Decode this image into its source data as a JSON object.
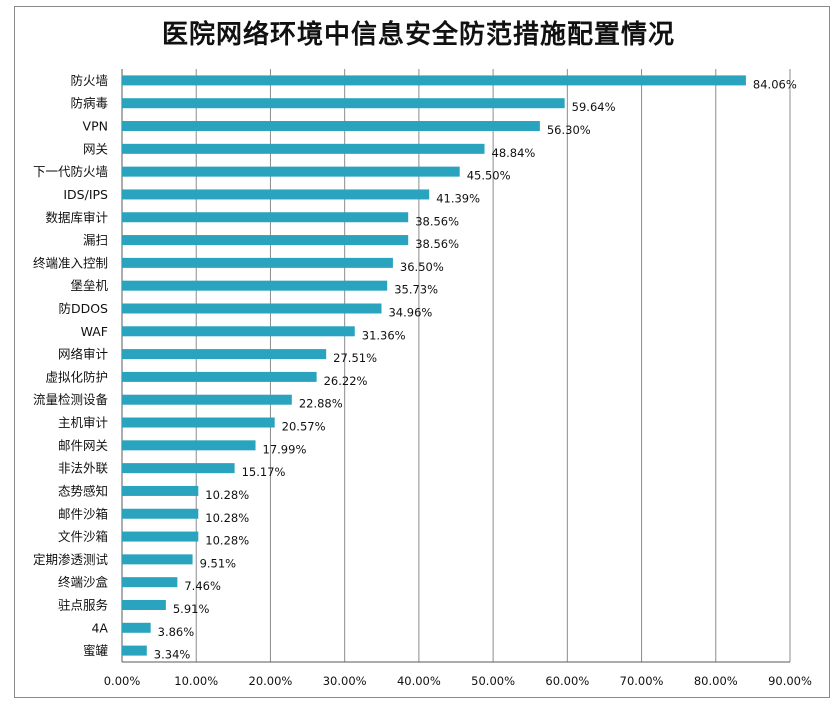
{
  "chart_data": {
    "type": "bar",
    "orientation": "horizontal",
    "title": "医院网络环境中信息安全防范措施配置情况",
    "categories": [
      "防火墙",
      "防病毒",
      "VPN",
      "网关",
      "下一代防火墙",
      "IDS/IPS",
      "数据库审计",
      "漏扫",
      "终端准入控制",
      "堡垒机",
      "防DDOS",
      "WAF",
      "网络审计",
      "虚拟化防护",
      "流量检测设备",
      "主机审计",
      "邮件网关",
      "非法外联",
      "态势感知",
      "邮件沙箱",
      "文件沙箱",
      "定期渗透测试",
      "终端沙盒",
      "驻点服务",
      "4A",
      "蜜罐"
    ],
    "values": [
      84.06,
      59.64,
      56.3,
      48.84,
      45.5,
      41.39,
      38.56,
      38.56,
      36.5,
      35.73,
      34.96,
      31.36,
      27.51,
      26.22,
      22.88,
      20.57,
      17.99,
      15.17,
      10.28,
      10.28,
      10.28,
      9.51,
      7.46,
      5.91,
      3.86,
      3.34
    ],
    "data_labels": [
      "84.06%",
      "59.64%",
      "56.30%",
      "48.84%",
      "45.50%",
      "41.39%",
      "38.56%",
      "38.56%",
      "36.50%",
      "35.73%",
      "34.96%",
      "31.36%",
      "27.51%",
      "26.22%",
      "22.88%",
      "20.57%",
      "17.99%",
      "15.17%",
      "10.28%",
      "10.28%",
      "10.28%",
      "9.51%",
      "7.46%",
      "5.91%",
      "3.86%",
      "3.34%"
    ],
    "xlim": [
      0,
      90
    ],
    "x_ticks": [
      0,
      10,
      20,
      30,
      40,
      50,
      60,
      70,
      80,
      90
    ],
    "x_tick_labels": [
      "0.00%",
      "10.00%",
      "20.00%",
      "30.00%",
      "40.00%",
      "50.00%",
      "60.00%",
      "70.00%",
      "80.00%",
      "90.00%"
    ],
    "grid": true,
    "bar_color": "#2aa3be",
    "grid_color": "#8c8c8c"
  }
}
